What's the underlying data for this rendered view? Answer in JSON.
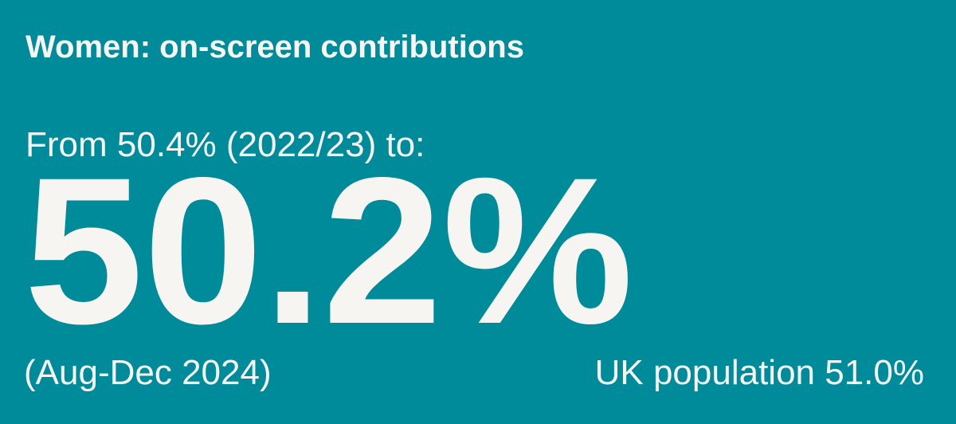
{
  "card": {
    "title": "Women: on-screen contributions",
    "previous": "From 50.4% (2022/23) to:",
    "value": "50.2%",
    "period": "(Aug-Dec 2024)",
    "comparison": "UK population 51.0%"
  }
}
